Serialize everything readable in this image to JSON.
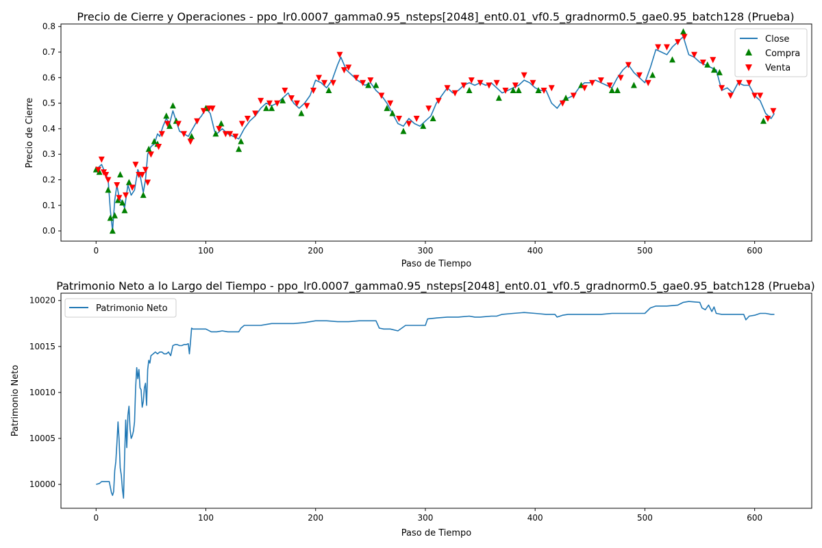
{
  "chart_data": [
    {
      "type": "line",
      "title": "Precio de Cierre y Operaciones - ppo_lr0.0007_gamma0.95_nsteps[2048]_ent0.01_vf0.5_gradnorm0.5_gae0.95_batch128 (Prueba)",
      "xlabel": "Paso de Tiempo",
      "ylabel": "Precio de Cierre",
      "xlim": [
        -32,
        652
      ],
      "ylim": [
        -0.04,
        0.81
      ],
      "xticks": [
        "0",
        "100",
        "200",
        "300",
        "400",
        "500",
        "600"
      ],
      "yticks": [
        "0.0",
        "0.1",
        "0.2",
        "0.3",
        "0.4",
        "0.5",
        "0.6",
        "0.7",
        "0.8"
      ],
      "legend": [
        "Close",
        "Compra",
        "Venta"
      ],
      "legend_position": "top-right",
      "grid": false,
      "colors": {
        "line": "#1f77b4",
        "buy": "#008000",
        "sell": "#ff0000"
      },
      "series": [
        {
          "name": "Close",
          "marker": "line",
          "x": [
            0,
            5,
            8,
            11,
            13,
            15,
            17,
            19,
            21,
            24,
            26,
            29,
            32,
            35,
            38,
            40,
            43,
            45,
            47,
            50,
            53,
            56,
            58,
            61,
            64,
            67,
            70,
            73,
            76,
            80,
            84,
            88,
            92,
            96,
            100,
            104,
            108,
            110,
            115,
            120,
            125,
            130,
            135,
            140,
            145,
            150,
            155,
            160,
            165,
            170,
            175,
            180,
            185,
            190,
            195,
            200,
            205,
            210,
            215,
            220,
            223,
            228,
            233,
            238,
            245,
            250,
            255,
            260,
            265,
            270,
            275,
            280,
            285,
            290,
            295,
            300,
            305,
            310,
            315,
            320,
            325,
            330,
            335,
            340,
            345,
            350,
            355,
            360,
            365,
            370,
            375,
            380,
            385,
            390,
            395,
            400,
            405,
            410,
            415,
            420,
            425,
            430,
            435,
            440,
            445,
            450,
            455,
            460,
            465,
            470,
            475,
            480,
            485,
            490,
            495,
            500,
            505,
            510,
            515,
            520,
            525,
            530,
            535,
            540,
            545,
            550,
            555,
            560,
            565,
            570,
            575,
            580,
            585,
            590,
            595,
            600,
            605,
            610,
            615,
            618
          ],
          "y": [
            0.24,
            0.26,
            0.23,
            0.2,
            0.08,
            0.0,
            0.12,
            0.18,
            0.13,
            0.11,
            0.09,
            0.18,
            0.14,
            0.16,
            0.24,
            0.22,
            0.15,
            0.2,
            0.3,
            0.33,
            0.34,
            0.38,
            0.37,
            0.41,
            0.44,
            0.42,
            0.47,
            0.43,
            0.39,
            0.38,
            0.37,
            0.4,
            0.43,
            0.45,
            0.48,
            0.46,
            0.39,
            0.38,
            0.4,
            0.38,
            0.37,
            0.36,
            0.4,
            0.43,
            0.45,
            0.48,
            0.5,
            0.49,
            0.5,
            0.52,
            0.54,
            0.5,
            0.48,
            0.5,
            0.53,
            0.59,
            0.58,
            0.56,
            0.59,
            0.65,
            0.68,
            0.63,
            0.61,
            0.59,
            0.57,
            0.58,
            0.55,
            0.53,
            0.5,
            0.46,
            0.42,
            0.41,
            0.44,
            0.42,
            0.41,
            0.43,
            0.45,
            0.5,
            0.53,
            0.56,
            0.54,
            0.55,
            0.57,
            0.58,
            0.57,
            0.58,
            0.57,
            0.58,
            0.56,
            0.54,
            0.55,
            0.56,
            0.57,
            0.59,
            0.58,
            0.56,
            0.55,
            0.55,
            0.5,
            0.48,
            0.51,
            0.52,
            0.53,
            0.56,
            0.58,
            0.58,
            0.59,
            0.58,
            0.57,
            0.56,
            0.6,
            0.63,
            0.65,
            0.62,
            0.6,
            0.58,
            0.64,
            0.71,
            0.7,
            0.69,
            0.72,
            0.74,
            0.76,
            0.69,
            0.68,
            0.66,
            0.65,
            0.64,
            0.63,
            0.55,
            0.56,
            0.54,
            0.58,
            0.57,
            0.57,
            0.53,
            0.51,
            0.46,
            0.44,
            0.46
          ]
        },
        {
          "name": "Compra",
          "marker": "triangle-up",
          "x": [
            0,
            3,
            11,
            13,
            15,
            17,
            20,
            22,
            24,
            26,
            30,
            43,
            48,
            53,
            56,
            64,
            67,
            70,
            73,
            87,
            100,
            109,
            114,
            130,
            132,
            155,
            160,
            170,
            187,
            212,
            248,
            255,
            265,
            270,
            280,
            298,
            307,
            340,
            367,
            380,
            385,
            403,
            428,
            442,
            470,
            475,
            490,
            507,
            525,
            535,
            557,
            563,
            568,
            608
          ],
          "y": [
            0.24,
            0.23,
            0.16,
            0.05,
            0.0,
            0.06,
            0.12,
            0.22,
            0.11,
            0.08,
            0.19,
            0.14,
            0.32,
            0.35,
            0.34,
            0.45,
            0.41,
            0.49,
            0.43,
            0.37,
            0.48,
            0.38,
            0.42,
            0.32,
            0.35,
            0.48,
            0.48,
            0.51,
            0.46,
            0.55,
            0.57,
            0.57,
            0.48,
            0.46,
            0.39,
            0.41,
            0.44,
            0.55,
            0.52,
            0.55,
            0.55,
            0.55,
            0.52,
            0.57,
            0.55,
            0.55,
            0.57,
            0.61,
            0.67,
            0.78,
            0.65,
            0.63,
            0.62,
            0.43
          ]
        },
        {
          "name": "Venta",
          "marker": "triangle-down",
          "x": [
            2,
            5,
            7,
            9,
            11,
            19,
            21,
            27,
            33,
            36,
            39,
            42,
            45,
            47,
            50,
            57,
            60,
            65,
            75,
            80,
            86,
            92,
            98,
            103,
            106,
            112,
            118,
            122,
            127,
            133,
            138,
            145,
            150,
            158,
            165,
            172,
            178,
            183,
            192,
            198,
            203,
            208,
            216,
            222,
            226,
            230,
            237,
            243,
            250,
            260,
            268,
            276,
            285,
            292,
            303,
            312,
            320,
            327,
            335,
            342,
            350,
            358,
            365,
            373,
            382,
            390,
            398,
            408,
            415,
            425,
            435,
            445,
            452,
            460,
            468,
            478,
            485,
            495,
            503,
            512,
            520,
            530,
            536,
            545,
            553,
            562,
            570,
            578,
            586,
            595,
            600,
            605,
            612,
            617
          ],
          "y": [
            0.24,
            0.28,
            0.23,
            0.22,
            0.2,
            0.18,
            0.13,
            0.14,
            0.17,
            0.26,
            0.22,
            0.22,
            0.24,
            0.19,
            0.3,
            0.33,
            0.38,
            0.42,
            0.42,
            0.38,
            0.35,
            0.43,
            0.47,
            0.48,
            0.48,
            0.4,
            0.38,
            0.38,
            0.37,
            0.42,
            0.44,
            0.46,
            0.51,
            0.5,
            0.5,
            0.55,
            0.52,
            0.5,
            0.49,
            0.55,
            0.6,
            0.58,
            0.58,
            0.69,
            0.63,
            0.64,
            0.6,
            0.58,
            0.59,
            0.53,
            0.5,
            0.44,
            0.42,
            0.44,
            0.48,
            0.51,
            0.56,
            0.54,
            0.57,
            0.59,
            0.58,
            0.57,
            0.58,
            0.55,
            0.57,
            0.61,
            0.58,
            0.55,
            0.56,
            0.5,
            0.53,
            0.56,
            0.58,
            0.59,
            0.57,
            0.6,
            0.65,
            0.61,
            0.58,
            0.72,
            0.72,
            0.74,
            0.76,
            0.69,
            0.66,
            0.67,
            0.56,
            0.53,
            0.58,
            0.58,
            0.53,
            0.53,
            0.44,
            0.47
          ]
        }
      ]
    },
    {
      "type": "line",
      "title": "Patrimonio Neto a lo Largo del Tiempo - ppo_lr0.0007_gamma0.95_nsteps[2048]_ent0.01_vf0.5_gradnorm0.5_gae0.95_batch128 (Prueba)",
      "xlabel": "Paso de Tiempo",
      "ylabel": "Patrimonio Neto",
      "xlim": [
        -32,
        652
      ],
      "ylim": [
        9997.4,
        10020.8
      ],
      "xticks": [
        "0",
        "100",
        "200",
        "300",
        "400",
        "500",
        "600"
      ],
      "yticks": [
        "10000",
        "10005",
        "10010",
        "10015",
        "10020"
      ],
      "legend": [
        "Patrimonio Neto"
      ],
      "legend_position": "top-left",
      "grid": false,
      "colors": {
        "line": "#1f77b4"
      },
      "series": [
        {
          "name": "Patrimonio Neto",
          "x": [
            0,
            3,
            5,
            8,
            10,
            12,
            14,
            15,
            16,
            17,
            18,
            19,
            20,
            21,
            22,
            23,
            24,
            25,
            26,
            27,
            28,
            29,
            30,
            31,
            32,
            33,
            34,
            35,
            36,
            37,
            38,
            39,
            40,
            41,
            42,
            43,
            44,
            45,
            46,
            47,
            48,
            49,
            50,
            52,
            54,
            56,
            58,
            60,
            62,
            64,
            66,
            68,
            70,
            72,
            74,
            76,
            78,
            80,
            82,
            84,
            85,
            86,
            87,
            88,
            90,
            95,
            100,
            105,
            110,
            115,
            120,
            125,
            130,
            132,
            135,
            140,
            150,
            160,
            170,
            180,
            190,
            200,
            210,
            220,
            230,
            240,
            250,
            255,
            258,
            262,
            268,
            275,
            282,
            290,
            300,
            302,
            310,
            320,
            330,
            340,
            345,
            350,
            360,
            365,
            370,
            380,
            390,
            400,
            410,
            418,
            420,
            425,
            430,
            440,
            450,
            460,
            470,
            480,
            490,
            500,
            505,
            510,
            520,
            530,
            535,
            540,
            550,
            552,
            555,
            558,
            561,
            563,
            565,
            570,
            580,
            590,
            592,
            595,
            600,
            605,
            610,
            615,
            618
          ],
          "y": [
            10000,
            10000.1,
            10000.3,
            10000.3,
            10000.3,
            10000.3,
            9999.1,
            9998.8,
            9999.2,
            10001.5,
            10002.5,
            10004.5,
            10006.8,
            10004.8,
            10001.8,
            10001,
            9999.5,
            9998.5,
            10003,
            10007,
            10004,
            10007.5,
            10008.5,
            10006,
            10005,
            10005.3,
            10005.8,
            10006.8,
            10010.5,
            10012.7,
            10011.5,
            10012.5,
            10010.5,
            10010.3,
            10008.4,
            10009,
            10010.5,
            10011,
            10008.6,
            10012.5,
            10013.5,
            10013.2,
            10014,
            10014.2,
            10014.4,
            10014.2,
            10014.4,
            10014.4,
            10014.2,
            10014.2,
            10014.4,
            10014,
            10015.1,
            10015.2,
            10015.2,
            10015.1,
            10015.1,
            10015.2,
            10015.2,
            10015.3,
            10014.2,
            10015.5,
            10017,
            10016.9,
            10016.9,
            10016.9,
            10016.9,
            10016.6,
            10016.6,
            10016.7,
            10016.6,
            10016.6,
            10016.6,
            10017,
            10017.3,
            10017.3,
            10017.3,
            10017.5,
            10017.5,
            10017.5,
            10017.6,
            10017.8,
            10017.8,
            10017.7,
            10017.7,
            10017.8,
            10017.8,
            10017.8,
            10017,
            10016.9,
            10016.9,
            10016.7,
            10017.3,
            10017.3,
            10017.3,
            10018,
            10018.1,
            10018.2,
            10018.2,
            10018.3,
            10018.2,
            10018.2,
            10018.3,
            10018.3,
            10018.5,
            10018.6,
            10018.7,
            10018.6,
            10018.5,
            10018.5,
            10018.2,
            10018.4,
            10018.5,
            10018.5,
            10018.5,
            10018.5,
            10018.6,
            10018.6,
            10018.6,
            10018.6,
            10019.2,
            10019.4,
            10019.4,
            10019.5,
            10019.8,
            10019.9,
            10019.8,
            10019.2,
            10019,
            10019.5,
            10018.8,
            10019.3,
            10018.6,
            10018.5,
            10018.5,
            10018.5,
            10017.9,
            10018.3,
            10018.4,
            10018.6,
            10018.6,
            10018.5,
            10018.5
          ]
        }
      ]
    }
  ]
}
